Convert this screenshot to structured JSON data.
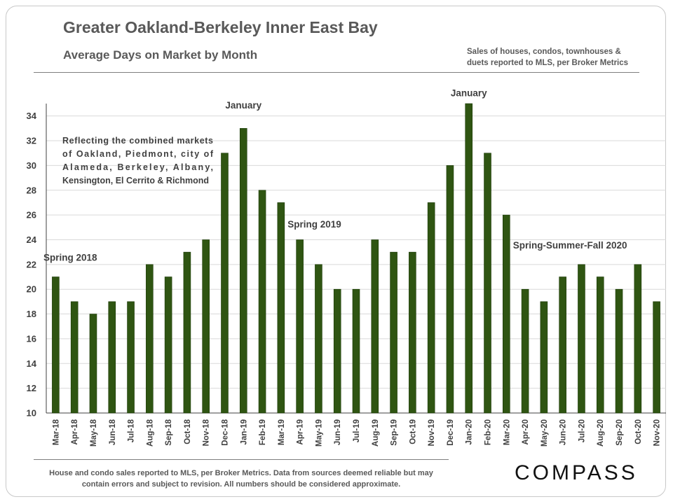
{
  "header": {
    "title": "Greater Oakland-Berkeley Inner East Bay",
    "subtitle": "Average Days on Market by Month",
    "source_line1": "Sales of houses, condos, townhouses &",
    "source_line2": "duets reported to MLS, per Broker Metrics"
  },
  "footer": {
    "note_line1": "House and condo sales reported to MLS, per Broker Metrics. Data from sources deemed reliable but may",
    "note_line2": "contain errors and subject to revision. All numbers should be considered approximate.",
    "logo_text": "COMPASS"
  },
  "colors": {
    "bar_fill": "#2f5512",
    "bar_stroke": "#1c3a08",
    "grid": "#d9d9d9",
    "axis": "#404040"
  },
  "chart_data": {
    "type": "bar",
    "title": "Greater Oakland-Berkeley Inner East Bay",
    "subtitle": "Average Days on Market by Month",
    "xlabel": "",
    "ylabel": "",
    "ylim": [
      10,
      35
    ],
    "yticks": [
      10,
      12,
      14,
      16,
      18,
      20,
      22,
      24,
      26,
      28,
      30,
      32,
      34
    ],
    "grid": true,
    "categories": [
      "Mar-18",
      "Apr-18",
      "May-18",
      "Jun-18",
      "Jul-18",
      "Aug-18",
      "Sep-18",
      "Oct-18",
      "Nov-18",
      "Dec-18",
      "Jan-19",
      "Feb-19",
      "Mar-19",
      "Apr-19",
      "May-19",
      "Jun-19",
      "Jul-19",
      "Aug-19",
      "Sep-19",
      "Oct-19",
      "Nov-19",
      "Dec-19",
      "Jan-20",
      "Feb-20",
      "Mar-20",
      "Apr-20",
      "May-20",
      "Jun-20",
      "Jul-20",
      "Aug-20",
      "Sep-20",
      "Oct-20",
      "Nov-20"
    ],
    "values": [
      21,
      19,
      18,
      19,
      19,
      22,
      21,
      23,
      24,
      31,
      33,
      28,
      27,
      24,
      22,
      20,
      20,
      24,
      23,
      23,
      27,
      30,
      35,
      31,
      26,
      20,
      19,
      21,
      22,
      21,
      20,
      22,
      19
    ],
    "annotations": [
      {
        "id": "spring-2018",
        "text": "Spring 2018",
        "category": "Mar-18",
        "value": 22.3,
        "anchor": "start"
      },
      {
        "id": "january-2019",
        "text": "January",
        "category": "Jan-19",
        "value": 34.6,
        "anchor": "middle"
      },
      {
        "id": "spring-2019",
        "text": "Spring 2019",
        "category": "Apr-19",
        "value": 25.0,
        "anchor": "start"
      },
      {
        "id": "january-2020",
        "text": "January",
        "category": "Jan-20",
        "value": 35.6,
        "anchor": "middle"
      },
      {
        "id": "spring-summer-fall-2020",
        "text": "Spring-Summer-Fall 2020",
        "category": "Apr-20",
        "value": 23.3,
        "anchor": "start"
      }
    ],
    "note_lines": [
      "Reflecting the combined markets",
      "of Oakland, Piedmont, city of",
      "Alameda, Berkeley, Albany,",
      "Kensington, El Cerrito & Richmond"
    ]
  }
}
